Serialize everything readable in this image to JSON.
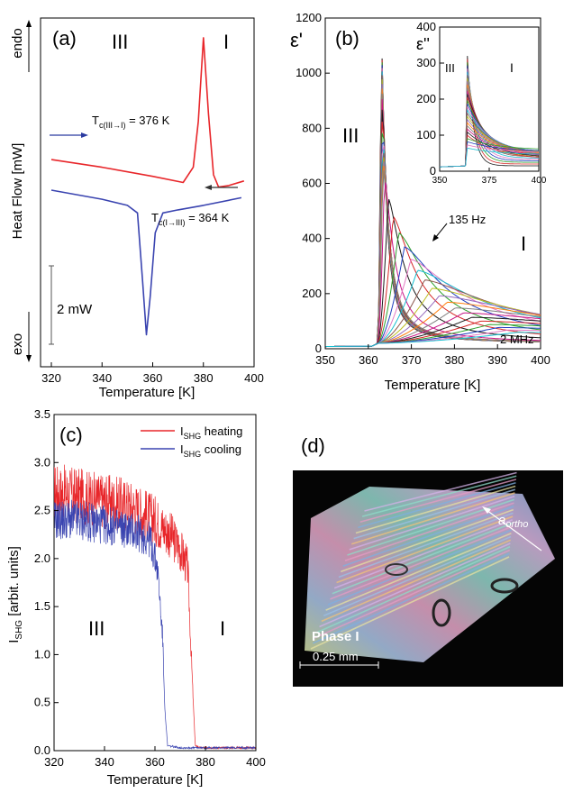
{
  "panels": {
    "a": {
      "label": "(a)",
      "ylabel": "Heat Flow  [mW]",
      "xlabel": "Temperature [K]",
      "endo": "endo",
      "exo": "exo",
      "phase_left": "III",
      "phase_right": "I",
      "tc_heat": "T",
      "tc_heat_sub": "c(III→I)",
      "tc_heat_val": " = 376 K",
      "tc_cool": "T",
      "tc_cool_sub": "c(I→III)",
      "tc_cool_val": " = 364 K",
      "scalebar": "2 mW"
    },
    "b": {
      "label": "(b)",
      "ylabel": "ε'",
      "xlabel": "Temperature [K]",
      "phase_left": "III",
      "phase_right": "I",
      "ann_low": "135 Hz",
      "ann_high": "2 MHz",
      "inset_ylabel": "ε''",
      "inset_phase_left": "III",
      "inset_phase_right": "I"
    },
    "c": {
      "label": "(c)",
      "ylabel": "I",
      "ylabel_sub": "SHG",
      "ylabel_rest": " [arbit. units]",
      "xlabel": "Temperature [K]",
      "phase_left": "III",
      "phase_right": "I",
      "legend": [
        {
          "main": "I",
          "sub": "SHG",
          "rest": " heating",
          "color": "#e8262a"
        },
        {
          "main": "I",
          "sub": "SHG",
          "rest": " cooling",
          "color": "#3a44b0"
        }
      ]
    },
    "d": {
      "label": "(d)",
      "phase": "Phase I",
      "axis_label": "a",
      "axis_sub": "ortho",
      "scalebar": "0.25 mm"
    }
  },
  "chart_data": [
    {
      "type": "line",
      "panel": "a",
      "xlim": [
        320,
        400
      ],
      "xticks": [
        320,
        340,
        360,
        380,
        400
      ],
      "yticks": [],
      "series": [
        {
          "color": "#e8262a",
          "x": [
            320,
            340,
            360,
            372,
            376,
            378,
            380,
            382,
            384,
            386,
            390,
            396
          ],
          "y": [
            6.0,
            5.5,
            4.9,
            4.5,
            5.5,
            8.5,
            14.0,
            9.0,
            5.0,
            4.2,
            4.3,
            4.6
          ]
        },
        {
          "color": "#3a44b0",
          "x": [
            320,
            340,
            350,
            354,
            356,
            357.5,
            359,
            361,
            364,
            370,
            380,
            395
          ],
          "y": [
            4.0,
            3.4,
            3.0,
            2.5,
            -2.0,
            -5.5,
            -3.0,
            1.2,
            2.5,
            2.7,
            3.0,
            3.5
          ]
        }
      ]
    },
    {
      "type": "line",
      "panel": "b",
      "xlim": [
        350,
        400
      ],
      "ylim": [
        0,
        1200
      ],
      "xticks": [
        350,
        360,
        370,
        380,
        390,
        400
      ],
      "yticks": [
        0,
        200,
        400,
        600,
        800,
        1000,
        1200
      ],
      "frequency_range": [
        "135 Hz",
        "2 MHz"
      ],
      "series_summary": [
        {
          "frequency": "135 Hz",
          "peak_x": 363,
          "peak_y": 1140
        },
        {
          "frequency": "2 MHz",
          "peak_x": 395,
          "peak_y": 60
        }
      ]
    },
    {
      "type": "line",
      "panel": "b-inset",
      "xlim": [
        350,
        400
      ],
      "ylim": [
        0,
        400
      ],
      "xticks": [
        350,
        375,
        400
      ],
      "yticks": [
        0,
        100,
        200,
        300,
        400
      ],
      "series_summary": [
        {
          "peak_x": 364,
          "peak_y": 320
        }
      ]
    },
    {
      "type": "line",
      "panel": "c",
      "xlim": [
        320,
        400
      ],
      "ylim": [
        0,
        3.5
      ],
      "xticks": [
        320,
        340,
        360,
        380,
        400
      ],
      "yticks": [
        0.0,
        0.5,
        1.0,
        1.5,
        2.0,
        2.5,
        3.0,
        3.5
      ],
      "series": [
        {
          "name": "I_SHG heating",
          "color": "#e8262a",
          "x": [
            320,
            330,
            340,
            350,
            360,
            366,
            370,
            373,
            375,
            376,
            378,
            400
          ],
          "y": [
            2.7,
            2.65,
            2.6,
            2.55,
            2.4,
            2.25,
            2.1,
            1.9,
            0.6,
            0.05,
            0.03,
            0.03
          ]
        },
        {
          "name": "I_SHG cooling",
          "color": "#3a44b0",
          "x": [
            320,
            330,
            340,
            350,
            358,
            361,
            363,
            364,
            365,
            370,
            400
          ],
          "y": [
            2.4,
            2.4,
            2.35,
            2.3,
            2.2,
            1.9,
            1.2,
            0.4,
            0.05,
            0.03,
            0.03
          ]
        }
      ]
    }
  ]
}
